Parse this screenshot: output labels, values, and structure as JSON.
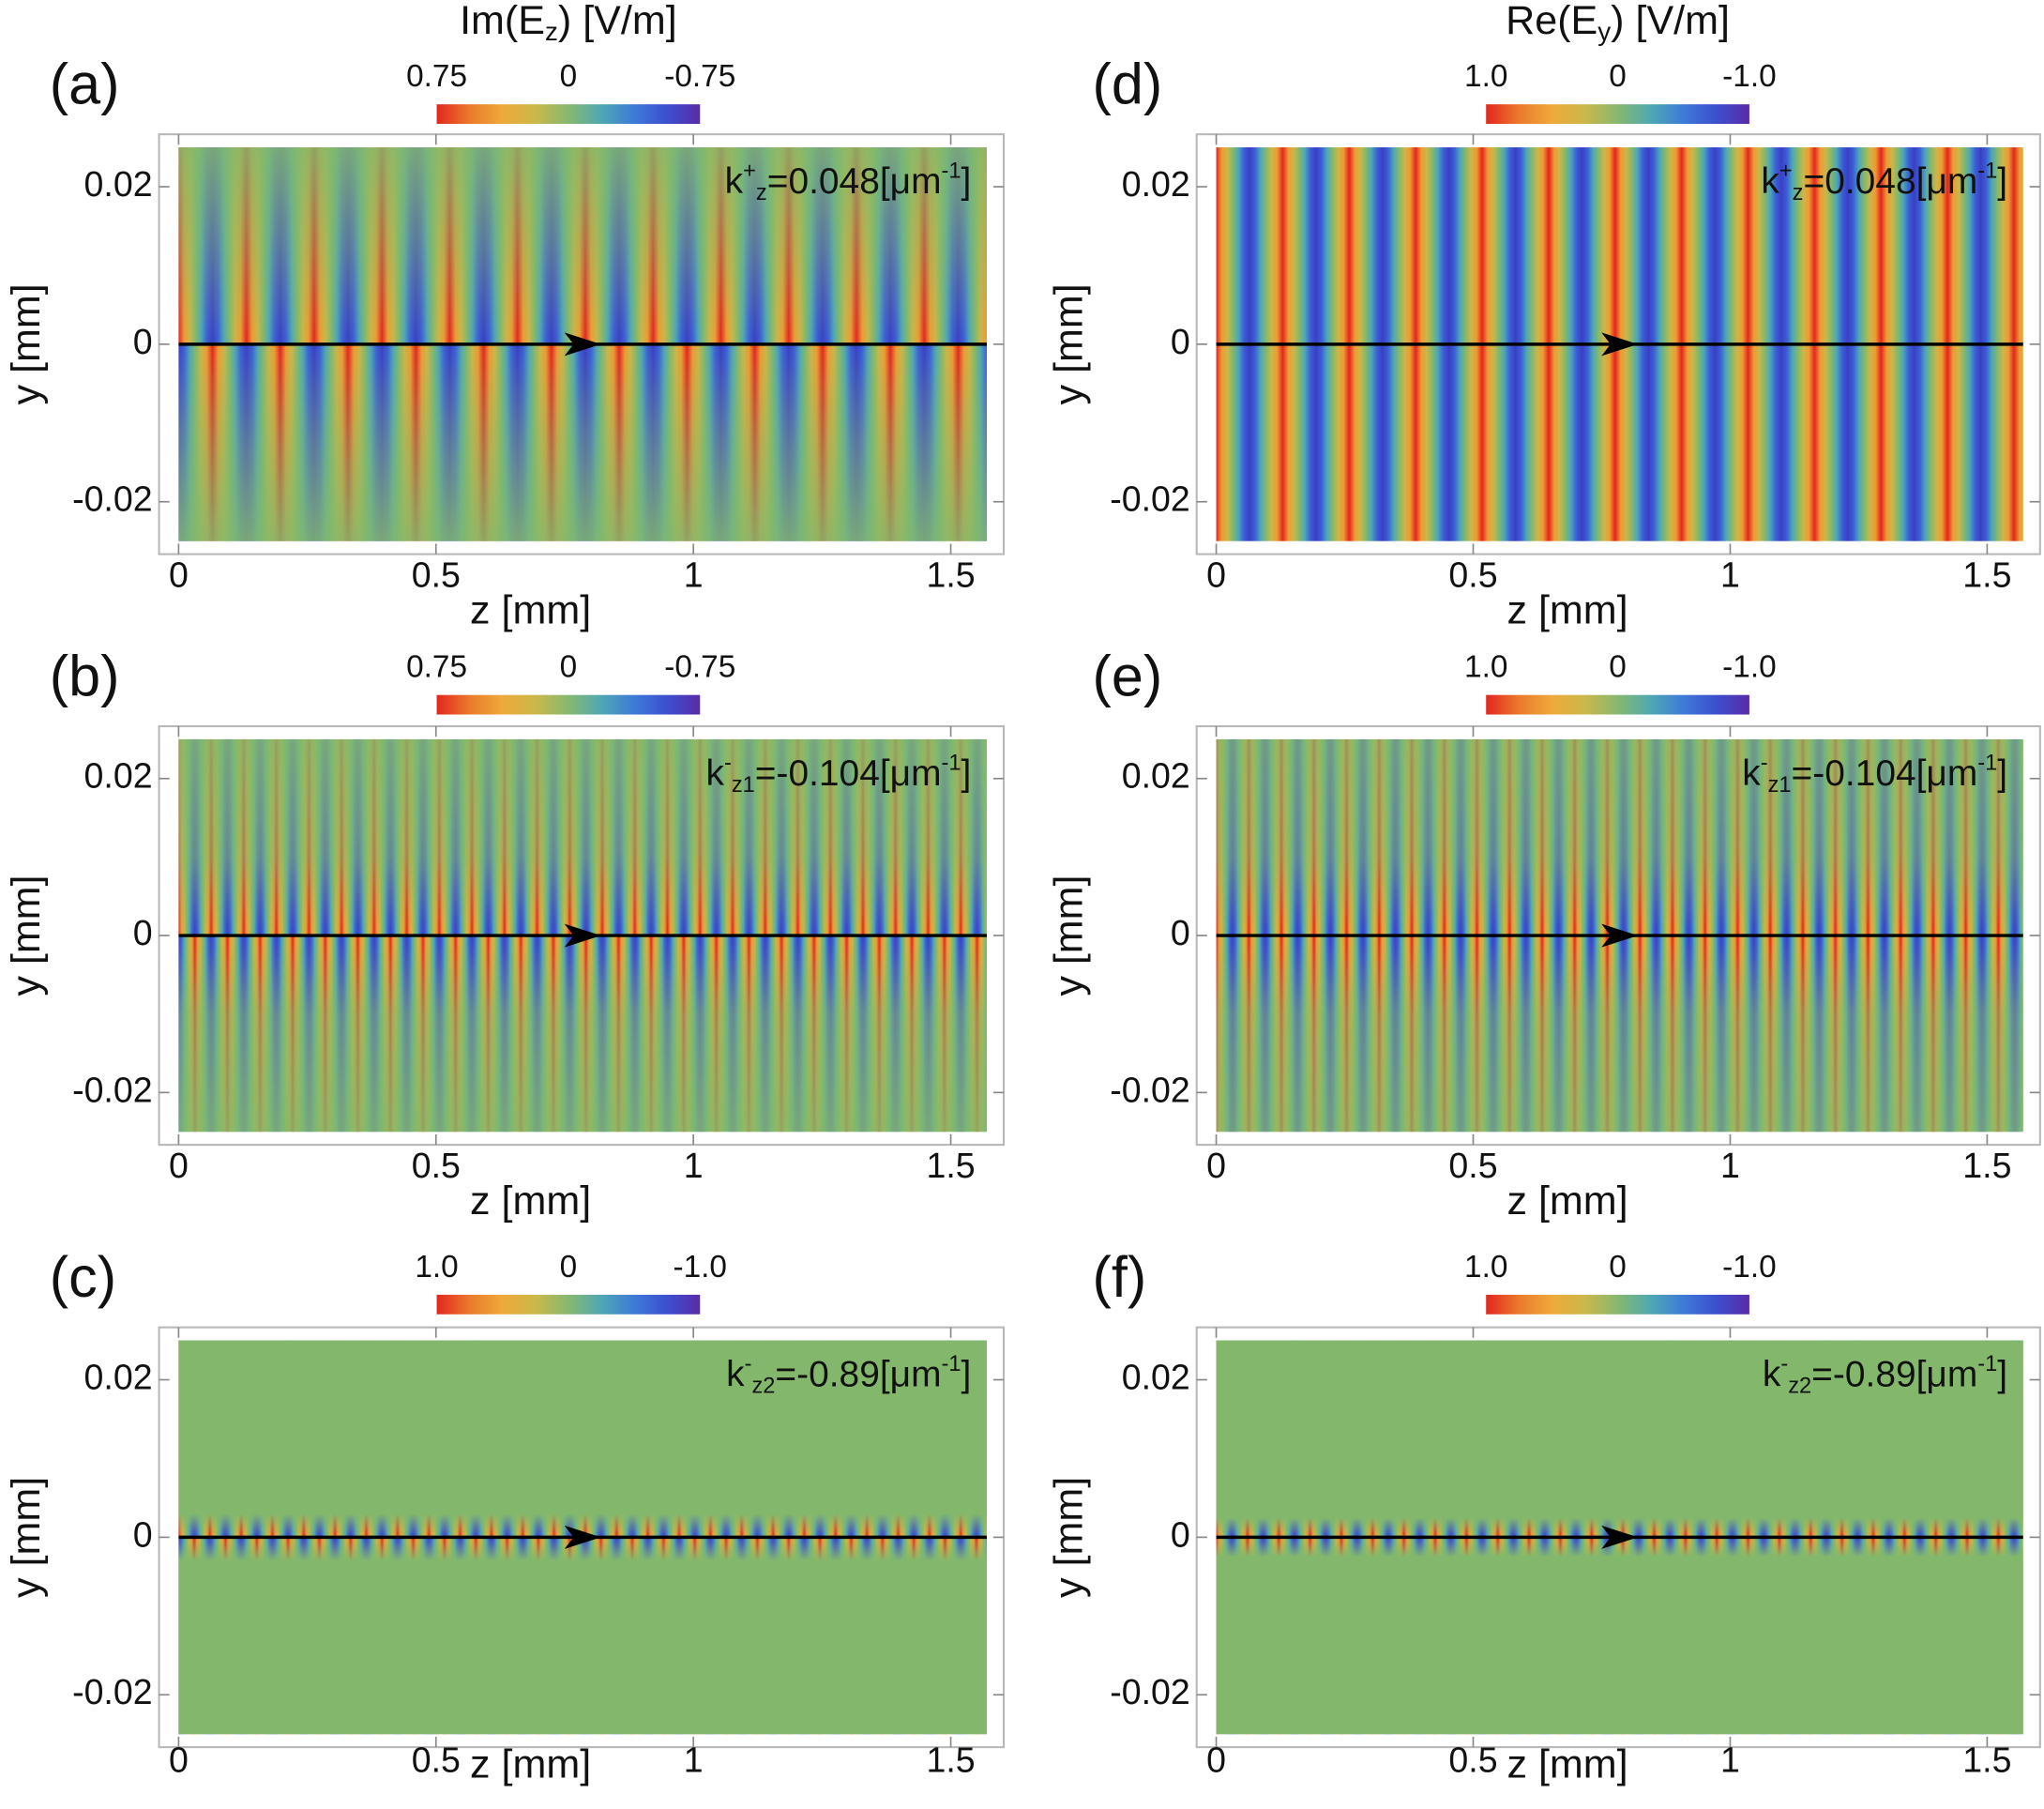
{
  "chart_data": [
    {
      "type": "density",
      "panel": "(a)",
      "title": {
        "main": "Im(E",
        "sub": "z",
        "end": ") [V/m]"
      },
      "clim": [
        0.75,
        -0.75
      ],
      "cticks": [
        0.75,
        0,
        -0.75
      ],
      "xlabel": "z [mm]",
      "ylabel": "y [mm]",
      "xlim": [
        0,
        1.57
      ],
      "xticks": [
        0,
        0.5,
        1,
        1.5
      ],
      "ylim": [
        -0.025,
        0.025
      ],
      "yticks": [
        -0.02,
        0,
        0.02
      ],
      "annotation": {
        "symbol": "k",
        "sup": "+",
        "sub": "z",
        "eq": "=",
        "value": 0.048,
        "unit": "[μm",
        "unit_sup": "-1",
        "close": "]"
      }
    },
    {
      "type": "density",
      "panel": "(b)",
      "clim": [
        0.75,
        -0.75
      ],
      "cticks": [
        0.75,
        0,
        -0.75
      ],
      "xlabel": "z [mm]",
      "ylabel": "y [mm]",
      "xlim": [
        0,
        1.57
      ],
      "xticks": [
        0,
        0.5,
        1,
        1.5
      ],
      "ylim": [
        -0.025,
        0.025
      ],
      "yticks": [
        -0.02,
        0,
        0.02
      ],
      "annotation": {
        "symbol": "k",
        "sup": "-",
        "sub": "z1",
        "eq": "=",
        "value": -0.104,
        "unit": "[μm",
        "unit_sup": "-1",
        "close": "]"
      }
    },
    {
      "type": "density",
      "panel": "(c)",
      "clim": [
        1,
        -1
      ],
      "cticks": [
        {
          "value": 1,
          "label": "1.0"
        },
        0,
        {
          "value": -1,
          "label": "-1.0"
        }
      ],
      "xlabel": "z [mm]",
      "ylabel": "y [mm]",
      "xlim": [
        0,
        1.57
      ],
      "xticks": [
        0,
        0.5,
        1,
        1.5
      ],
      "ylim": [
        -0.025,
        0.025
      ],
      "yticks": [
        -0.02,
        0,
        0.02
      ],
      "annotation": {
        "symbol": "k",
        "sup": "-",
        "sub": "z2",
        "eq": "=",
        "value": -0.89,
        "unit": "[μm",
        "unit_sup": "-1",
        "close": "]"
      }
    },
    {
      "type": "density",
      "panel": "(d)",
      "title": {
        "main": "Re(E",
        "sub": "y",
        "end": ") [V/m]"
      },
      "clim": [
        1,
        -1
      ],
      "cticks": [
        {
          "value": 1,
          "label": "1.0"
        },
        0,
        {
          "value": -1,
          "label": "-1.0"
        }
      ],
      "xlabel": "z [mm]",
      "ylabel": "y [mm]",
      "xlim": [
        0,
        1.57
      ],
      "xticks": [
        0,
        0.5,
        1,
        1.5
      ],
      "ylim": [
        -0.025,
        0.025
      ],
      "yticks": [
        -0.02,
        0,
        0.02
      ],
      "annotation": {
        "symbol": "k",
        "sup": "+",
        "sub": "z",
        "eq": "=",
        "value": 0.048,
        "unit": "[μm",
        "unit_sup": "-1",
        "close": "]"
      }
    },
    {
      "type": "density",
      "panel": "(e)",
      "clim": [
        1,
        -1
      ],
      "cticks": [
        {
          "value": 1,
          "label": "1.0"
        },
        0,
        {
          "value": -1,
          "label": "-1.0"
        }
      ],
      "xlabel": "z [mm]",
      "ylabel": "y [mm]",
      "xlim": [
        0,
        1.57
      ],
      "xticks": [
        0,
        0.5,
        1,
        1.5
      ],
      "ylim": [
        -0.025,
        0.025
      ],
      "yticks": [
        -0.02,
        0,
        0.02
      ],
      "annotation": {
        "symbol": "k",
        "sup": "-",
        "sub": "z1",
        "eq": "=",
        "value": -0.104,
        "unit": "[μm",
        "unit_sup": "-1",
        "close": "]"
      }
    },
    {
      "type": "density",
      "panel": "(f)",
      "clim": [
        1,
        -1
      ],
      "cticks": [
        {
          "value": 1,
          "label": "1.0"
        },
        0,
        {
          "value": -1,
          "label": "-1.0"
        }
      ],
      "xlabel": "z [mm]",
      "ylabel": "y [mm]",
      "xlim": [
        0,
        1.57
      ],
      "xticks": [
        0,
        0.5,
        1,
        1.5
      ],
      "ylim": [
        -0.025,
        0.025
      ],
      "yticks": [
        -0.02,
        0,
        0.02
      ],
      "annotation": {
        "symbol": "k",
        "sup": "-",
        "sub": "z2",
        "eq": "=",
        "value": -0.89,
        "unit": "[μm",
        "unit_sup": "-1",
        "close": "]"
      }
    }
  ]
}
